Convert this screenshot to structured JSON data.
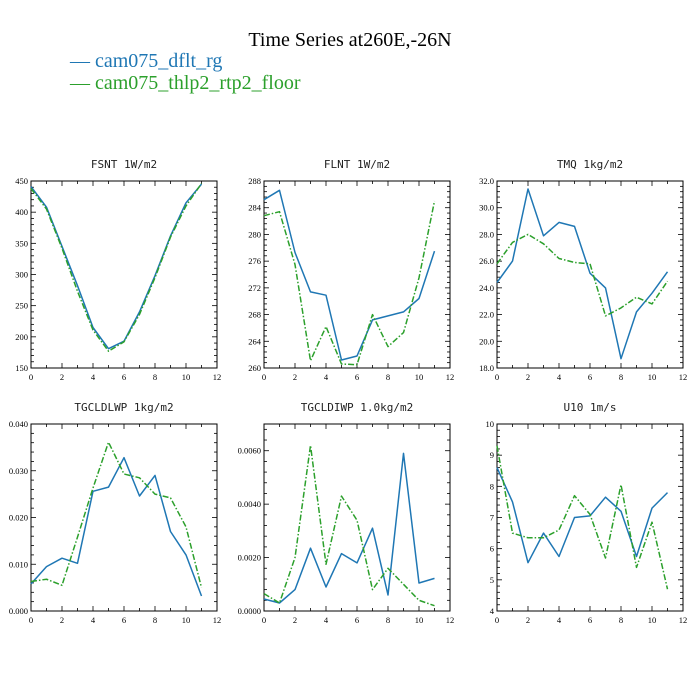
{
  "title": "Time Series at260E,-26N",
  "legend": [
    {
      "label": "— cam075_dflt_rg",
      "color": "#1f77b4"
    },
    {
      "label": "— cam075_thlp2_rtp2_floor",
      "color": "#2ca02c"
    }
  ],
  "colors": {
    "series1": "#1f77b4",
    "series2": "#2ca02c",
    "axis": "#000000"
  },
  "chart_data": [
    {
      "type": "line",
      "title": "FSNT 1W/m2",
      "xlim": [
        0,
        12
      ],
      "xticks": [
        0,
        2,
        4,
        6,
        8,
        10,
        12
      ],
      "ylim": [
        150,
        450
      ],
      "yticks": [
        150,
        200,
        250,
        300,
        350,
        400,
        450
      ],
      "ytick_labels": [
        "150",
        "200",
        "250",
        "300",
        "350",
        "400",
        "450"
      ],
      "x": [
        0,
        1,
        2,
        3,
        4,
        5,
        6,
        7,
        8,
        9,
        10,
        11
      ],
      "series": [
        {
          "name": "cam075_dflt_rg",
          "style": "solid",
          "values": [
            441,
            408,
            345,
            282,
            215,
            181,
            193,
            240,
            298,
            362,
            415,
            445
          ]
        },
        {
          "name": "cam075_thlp2_rtp2_floor",
          "style": "dashed",
          "values": [
            438,
            405,
            342,
            273,
            211,
            177,
            192,
            236,
            295,
            360,
            410,
            446
          ]
        }
      ]
    },
    {
      "type": "line",
      "title": "FLNT 1W/m2",
      "xlim": [
        0,
        12
      ],
      "xticks": [
        0,
        2,
        4,
        6,
        8,
        10,
        12
      ],
      "ylim": [
        260,
        288
      ],
      "yticks": [
        260,
        264,
        268,
        272,
        276,
        280,
        284,
        288
      ],
      "ytick_labels": [
        "260",
        "264",
        "268",
        "272",
        "276",
        "280",
        "284",
        "288"
      ],
      "x": [
        0,
        1,
        2,
        3,
        4,
        5,
        6,
        7,
        8,
        9,
        10,
        11
      ],
      "series": [
        {
          "name": "cam075_dflt_rg",
          "style": "solid",
          "values": [
            285.2,
            286.6,
            277.3,
            271.4,
            270.9,
            261.2,
            261.8,
            267.2,
            267.8,
            268.4,
            270.4,
            277.5
          ]
        },
        {
          "name": "cam075_thlp2_rtp2_floor",
          "style": "dashed",
          "values": [
            282.8,
            283.4,
            275.5,
            261.1,
            266.2,
            260.6,
            260.5,
            268.0,
            263.2,
            265.3,
            273.5,
            285.0
          ]
        }
      ]
    },
    {
      "type": "line",
      "title": "TMQ 1kg/m2",
      "xlim": [
        0,
        12
      ],
      "xticks": [
        0,
        2,
        4,
        6,
        8,
        10,
        12
      ],
      "ylim": [
        18,
        32
      ],
      "yticks": [
        18,
        20,
        22,
        24,
        26,
        28,
        30,
        32
      ],
      "ytick_labels": [
        "18.0",
        "20.0",
        "22.0",
        "24.0",
        "26.0",
        "28.0",
        "30.0",
        "32.0"
      ],
      "x": [
        0,
        1,
        2,
        3,
        4,
        5,
        6,
        7,
        8,
        9,
        10,
        11
      ],
      "series": [
        {
          "name": "cam075_dflt_rg",
          "style": "solid",
          "values": [
            24.4,
            26.0,
            31.4,
            27.9,
            28.9,
            28.6,
            25.1,
            24.0,
            18.7,
            22.2,
            23.6,
            25.2
          ]
        },
        {
          "name": "cam075_thlp2_rtp2_floor",
          "style": "dashed",
          "values": [
            25.8,
            27.4,
            28.0,
            27.3,
            26.2,
            25.9,
            25.8,
            21.9,
            22.5,
            23.3,
            22.8,
            24.5
          ]
        }
      ]
    },
    {
      "type": "line",
      "title": "TGCLDLWP 1kg/m2",
      "xlim": [
        0,
        12
      ],
      "xticks": [
        0,
        2,
        4,
        6,
        8,
        10,
        12
      ],
      "ylim": [
        0,
        0.04
      ],
      "yticks": [
        0,
        0.01,
        0.02,
        0.03,
        0.04
      ],
      "ytick_labels": [
        "0.000",
        "0.010",
        "0.020",
        "0.030",
        "0.040"
      ],
      "x": [
        0,
        1,
        2,
        3,
        4,
        5,
        6,
        7,
        8,
        9,
        10,
        11
      ],
      "series": [
        {
          "name": "cam075_dflt_rg",
          "style": "solid",
          "values": [
            0.0058,
            0.0095,
            0.0113,
            0.0102,
            0.0256,
            0.0265,
            0.0328,
            0.0246,
            0.029,
            0.017,
            0.012,
            0.0032
          ]
        },
        {
          "name": "cam075_thlp2_rtp2_floor",
          "style": "dashed",
          "values": [
            0.0063,
            0.0068,
            0.0055,
            0.0158,
            0.0263,
            0.0361,
            0.0293,
            0.0285,
            0.025,
            0.0242,
            0.018,
            0.005
          ]
        }
      ]
    },
    {
      "type": "line",
      "title": "TGCLDIWP 1.0kg/m2",
      "xlim": [
        0,
        12
      ],
      "xticks": [
        0,
        2,
        4,
        6,
        8,
        10,
        12
      ],
      "ylim": [
        0,
        0.007
      ],
      "yticks": [
        0,
        0.002,
        0.004,
        0.006
      ],
      "ytick_labels": [
        "0.0000",
        "0.0020",
        "0.0040",
        "0.0060"
      ],
      "x": [
        0,
        1,
        2,
        3,
        4,
        5,
        6,
        7,
        8,
        9,
        10,
        11
      ],
      "series": [
        {
          "name": "cam075_dflt_rg",
          "style": "solid",
          "values": [
            0.00045,
            0.0003,
            0.0008,
            0.00235,
            0.0009,
            0.00215,
            0.0018,
            0.0031,
            0.0006,
            0.0059,
            0.00105,
            0.00122
          ]
        },
        {
          "name": "cam075_thlp2_rtp2_floor",
          "style": "dashed",
          "values": [
            0.00065,
            0.0003,
            0.002,
            0.0062,
            0.00175,
            0.0043,
            0.0034,
            0.0008,
            0.0016,
            0.001,
            0.0004,
            0.0002
          ]
        }
      ]
    },
    {
      "type": "line",
      "title": "U10 1m/s",
      "xlim": [
        0,
        12
      ],
      "xticks": [
        0,
        2,
        4,
        6,
        8,
        10,
        12
      ],
      "ylim": [
        4,
        10
      ],
      "yticks": [
        4,
        5,
        6,
        7,
        8,
        9,
        10
      ],
      "ytick_labels": [
        "4",
        "5",
        "6",
        "7",
        "8",
        "9",
        "10"
      ],
      "x": [
        0,
        1,
        2,
        3,
        4,
        5,
        6,
        7,
        8,
        9,
        10,
        11
      ],
      "series": [
        {
          "name": "cam075_dflt_rg",
          "style": "solid",
          "values": [
            8.6,
            7.5,
            5.55,
            6.5,
            5.75,
            7.0,
            7.05,
            7.65,
            7.2,
            5.75,
            7.3,
            7.8
          ]
        },
        {
          "name": "cam075_thlp2_rtp2_floor",
          "style": "dashed",
          "values": [
            9.3,
            6.5,
            6.35,
            6.35,
            6.6,
            7.7,
            7.1,
            5.7,
            8.05,
            5.4,
            6.85,
            4.7
          ]
        }
      ]
    }
  ]
}
